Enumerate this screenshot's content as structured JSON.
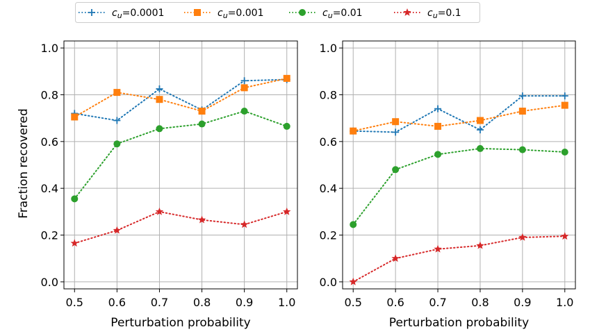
{
  "chart_data": {
    "type": "line",
    "legend": {
      "placement": "top-center",
      "entries": [
        {
          "prefix": "c",
          "sub": "u",
          "suffix": "=0.0001",
          "color": "#1f77b4",
          "marker": "plus"
        },
        {
          "prefix": "c",
          "sub": "u",
          "suffix": "=0.001",
          "color": "#ff7f0e",
          "marker": "square"
        },
        {
          "prefix": "c",
          "sub": "u",
          "suffix": "=0.01",
          "color": "#2ca02c",
          "marker": "circle"
        },
        {
          "prefix": "c",
          "sub": "u",
          "suffix": "=0.1",
          "color": "#d62728",
          "marker": "star"
        }
      ]
    },
    "panels": [
      {
        "xlabel": "Perturbation probability",
        "ylabel": "Fraction recovered",
        "x": [
          0.5,
          0.6,
          0.7,
          0.8,
          0.9,
          1.0
        ],
        "xticks": [
          "0.5",
          "0.6",
          "0.7",
          "0.8",
          "0.9",
          "1.0"
        ],
        "yticks": [
          "0.0",
          "0.2",
          "0.4",
          "0.6",
          "0.8",
          "1.0"
        ],
        "xlim": [
          0.475,
          1.025
        ],
        "ylim": [
          -0.03,
          1.03
        ],
        "grid": true,
        "series": [
          {
            "name": "cu=0.0001",
            "values": [
              0.72,
              0.69,
              0.825,
              0.735,
              0.86,
              0.865
            ]
          },
          {
            "name": "cu=0.001",
            "values": [
              0.705,
              0.81,
              0.78,
              0.73,
              0.83,
              0.87
            ]
          },
          {
            "name": "cu=0.01",
            "values": [
              0.355,
              0.59,
              0.655,
              0.675,
              0.73,
              0.665
            ]
          },
          {
            "name": "cu=0.1",
            "values": [
              0.165,
              0.22,
              0.3,
              0.265,
              0.245,
              0.3
            ]
          }
        ]
      },
      {
        "xlabel": "Perturbation probability",
        "ylabel": "",
        "x": [
          0.5,
          0.6,
          0.7,
          0.8,
          0.9,
          1.0
        ],
        "xticks": [
          "0.5",
          "0.6",
          "0.7",
          "0.8",
          "0.9",
          "1.0"
        ],
        "yticks": [
          "0.0",
          "0.2",
          "0.4",
          "0.6",
          "0.8",
          "1.0"
        ],
        "xlim": [
          0.475,
          1.025
        ],
        "ylim": [
          -0.03,
          1.03
        ],
        "grid": true,
        "series": [
          {
            "name": "cu=0.0001",
            "values": [
              0.645,
              0.64,
              0.74,
              0.65,
              0.795,
              0.795
            ]
          },
          {
            "name": "cu=0.001",
            "values": [
              0.645,
              0.685,
              0.665,
              0.69,
              0.73,
              0.755
            ]
          },
          {
            "name": "cu=0.01",
            "values": [
              0.245,
              0.48,
              0.545,
              0.57,
              0.565,
              0.555
            ]
          },
          {
            "name": "cu=0.1",
            "values": [
              0.0,
              0.1,
              0.14,
              0.155,
              0.19,
              0.195
            ]
          }
        ]
      }
    ]
  }
}
